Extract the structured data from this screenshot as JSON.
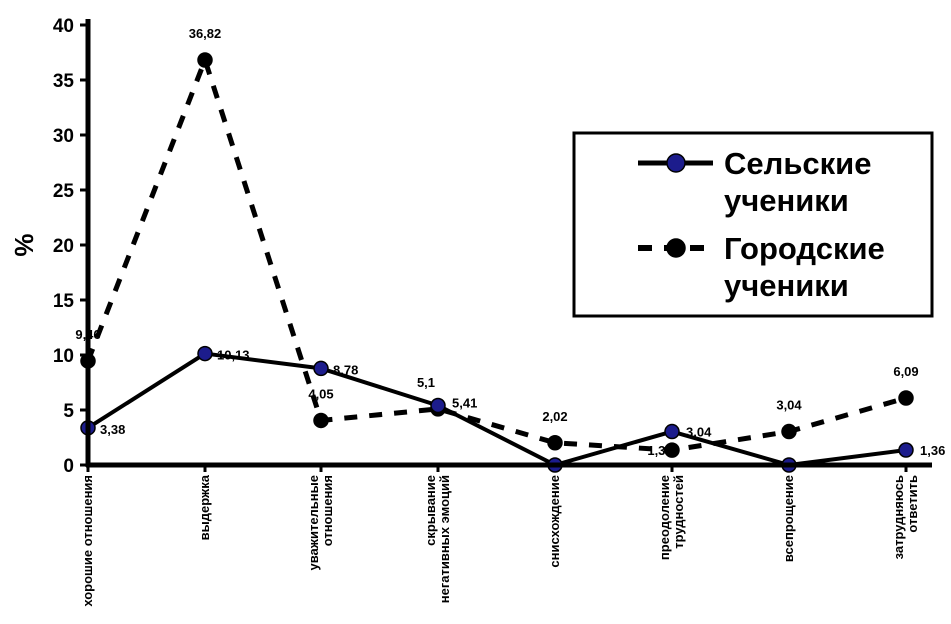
{
  "chart_data": {
    "type": "line",
    "ylabel": "%",
    "ylim": [
      0,
      40
    ],
    "yticks": [
      0,
      5,
      10,
      15,
      20,
      25,
      30,
      35,
      40
    ],
    "grid": false,
    "legend_position": "right",
    "categories": [
      [
        "хорошие отношения"
      ],
      [
        "выдержка"
      ],
      [
        "уважительные",
        "отношения"
      ],
      [
        "скрывание",
        "негативных эмоций"
      ],
      [
        "снисхождение"
      ],
      [
        "преодоление",
        "трудностей"
      ],
      [
        "всепрощение"
      ],
      [
        "затрудняюсь",
        "ответить"
      ]
    ],
    "series": [
      {
        "name": [
          "Сельские",
          "ученики"
        ],
        "style": "solid",
        "marker_color": "#1c1c8c",
        "values": [
          3.38,
          10.13,
          8.78,
          5.41,
          0,
          3.04,
          0,
          1.36
        ],
        "labels": [
          "3,38",
          "10,13",
          "8,78",
          "5,41",
          "",
          "3,04",
          "",
          "1,36"
        ]
      },
      {
        "name": [
          "Городские",
          "ученики"
        ],
        "style": "dashed",
        "marker_color": "#000000",
        "values": [
          9.46,
          36.82,
          4.05,
          5.1,
          2.02,
          1.35,
          3.04,
          6.09
        ],
        "labels": [
          "9,46",
          "36,82",
          "4,05",
          "5,1",
          "2,02",
          "1,35",
          "3,04",
          "6,09"
        ]
      }
    ]
  }
}
